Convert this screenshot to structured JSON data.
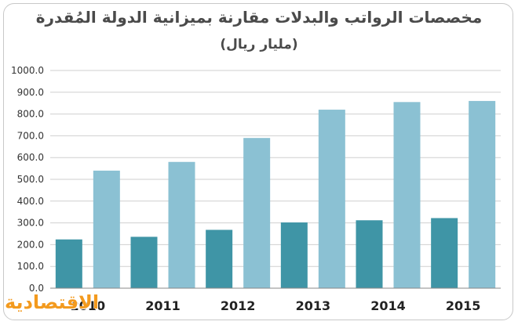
{
  "chart_data": {
    "type": "bar",
    "title": "مخصصات الرواتب والبدلات مقارنة بميزانية الدولة المُقدرة",
    "subtitle": "(مليار ريال)",
    "categories": [
      "2010",
      "2011",
      "2012",
      "2013",
      "2014",
      "2015"
    ],
    "series": [
      {
        "values": [
          224,
          236,
          268,
          302,
          312,
          322
        ],
        "color": "#3f95a6"
      },
      {
        "values": [
          540,
          580,
          690,
          820,
          855,
          860
        ],
        "color": "#8bc1d3"
      }
    ],
    "ylim": [
      0,
      1000
    ],
    "ytick_labels": [
      "0.0",
      "100.0",
      "200.0",
      "300.0",
      "400.0",
      "500.0",
      "600.0",
      "700.0",
      "800.0",
      "900.0",
      "1000.0"
    ],
    "grid": true,
    "legend": "none"
  },
  "branding": {
    "logo_text": "الاقتصادية"
  },
  "colors": {
    "grid": "#cfcfcf",
    "axis": "#888888",
    "text": "#333333",
    "logo": "#f39a1e"
  }
}
